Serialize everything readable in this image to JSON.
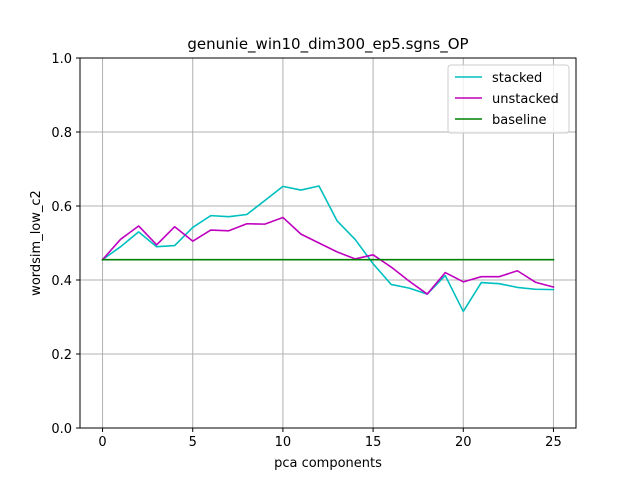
{
  "chart_data": {
    "type": "line",
    "title": "genunie_win10_dim300_ep5.sgns_OP",
    "xlabel": "pca components",
    "ylabel": "wordsim_low_c2",
    "xlim": [
      -1.25,
      26.25
    ],
    "ylim": [
      0.0,
      1.0
    ],
    "xticks": [
      0,
      5,
      10,
      15,
      20,
      25
    ],
    "yticks": [
      0.0,
      0.2,
      0.4,
      0.6,
      0.8,
      1.0
    ],
    "xtick_labels": [
      "0",
      "5",
      "10",
      "15",
      "20",
      "25"
    ],
    "ytick_labels": [
      "0.0",
      "0.2",
      "0.4",
      "0.6",
      "0.8",
      "1.0"
    ],
    "grid": true,
    "legend_position": "top-right",
    "x": [
      0,
      1,
      2,
      3,
      4,
      5,
      6,
      7,
      8,
      9,
      10,
      11,
      12,
      13,
      14,
      15,
      16,
      17,
      18,
      19,
      20,
      21,
      22,
      23,
      24,
      25
    ],
    "series": [
      {
        "name": "stacked",
        "color": "#00bfbf",
        "values": [
          0.455,
          0.49,
          0.53,
          0.49,
          0.493,
          0.542,
          0.574,
          0.571,
          0.577,
          0.615,
          0.653,
          0.643,
          0.654,
          0.56,
          0.51,
          0.444,
          0.388,
          0.378,
          0.362,
          0.412,
          0.315,
          0.393,
          0.39,
          0.38,
          0.375,
          0.374
        ]
      },
      {
        "name": "unstacked",
        "color": "#bf00bf",
        "values": [
          0.455,
          0.51,
          0.546,
          0.495,
          0.544,
          0.505,
          0.535,
          0.533,
          0.552,
          0.551,
          0.569,
          0.524,
          0.5,
          0.476,
          0.457,
          0.468,
          0.435,
          0.397,
          0.362,
          0.42,
          0.395,
          0.409,
          0.409,
          0.425,
          0.394,
          0.381
        ]
      },
      {
        "name": "baseline",
        "color": "#008000",
        "values": [
          0.455,
          0.455,
          0.455,
          0.455,
          0.455,
          0.455,
          0.455,
          0.455,
          0.455,
          0.455,
          0.455,
          0.455,
          0.455,
          0.455,
          0.455,
          0.455,
          0.455,
          0.455,
          0.455,
          0.455,
          0.455,
          0.455,
          0.455,
          0.455,
          0.455,
          0.455
        ]
      }
    ]
  }
}
